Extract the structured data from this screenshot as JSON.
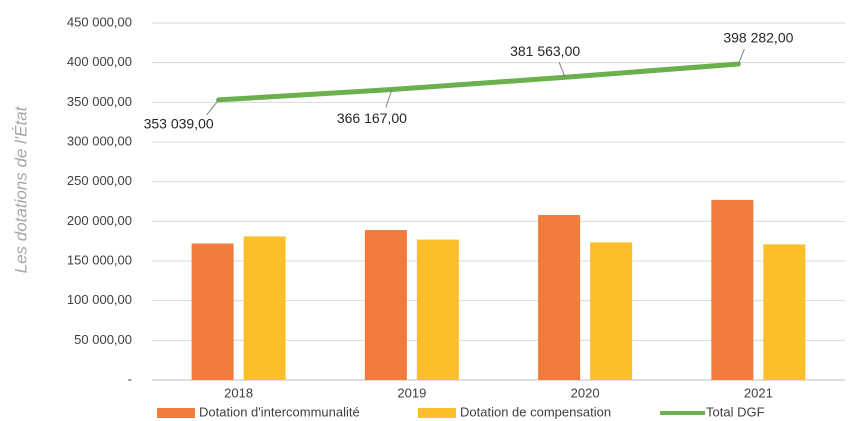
{
  "chart_data": {
    "type": "bar",
    "y_label": "Les dotations de l'État",
    "categories": [
      "2018",
      "2019",
      "2020",
      "2021"
    ],
    "series": [
      {
        "name": "Dotation d'intercommunalité",
        "color": "#f07c3c",
        "values": [
          172000,
          189000,
          208000,
          227000
        ]
      },
      {
        "name": "Dotation de compensation",
        "color": "#fbbf2c",
        "values": [
          181000,
          177000,
          173500,
          171000
        ]
      },
      {
        "name": "Total DGF",
        "type": "line",
        "color": "#6ab04c",
        "values": [
          353039,
          366167,
          381563,
          398282
        ],
        "value_labels": [
          "353 039,00",
          "366 167,00",
          "381 563,00",
          "398 282,00"
        ]
      }
    ],
    "ylim": [
      0,
      450000
    ],
    "yticks": [
      {
        "value": 0,
        "label": "-"
      },
      {
        "value": 50000,
        "label": "50 000,00"
      },
      {
        "value": 100000,
        "label": "100 000,00"
      },
      {
        "value": 150000,
        "label": "150 000,00"
      },
      {
        "value": 200000,
        "label": "200 000,00"
      },
      {
        "value": 250000,
        "label": "250 000,00"
      },
      {
        "value": 300000,
        "label": "300 000,00"
      },
      {
        "value": 350000,
        "label": "350 000,00"
      },
      {
        "value": 400000,
        "label": "400 000,00"
      },
      {
        "value": 450000,
        "label": "450 000,00"
      }
    ],
    "grid": true,
    "legend": "bottom"
  }
}
